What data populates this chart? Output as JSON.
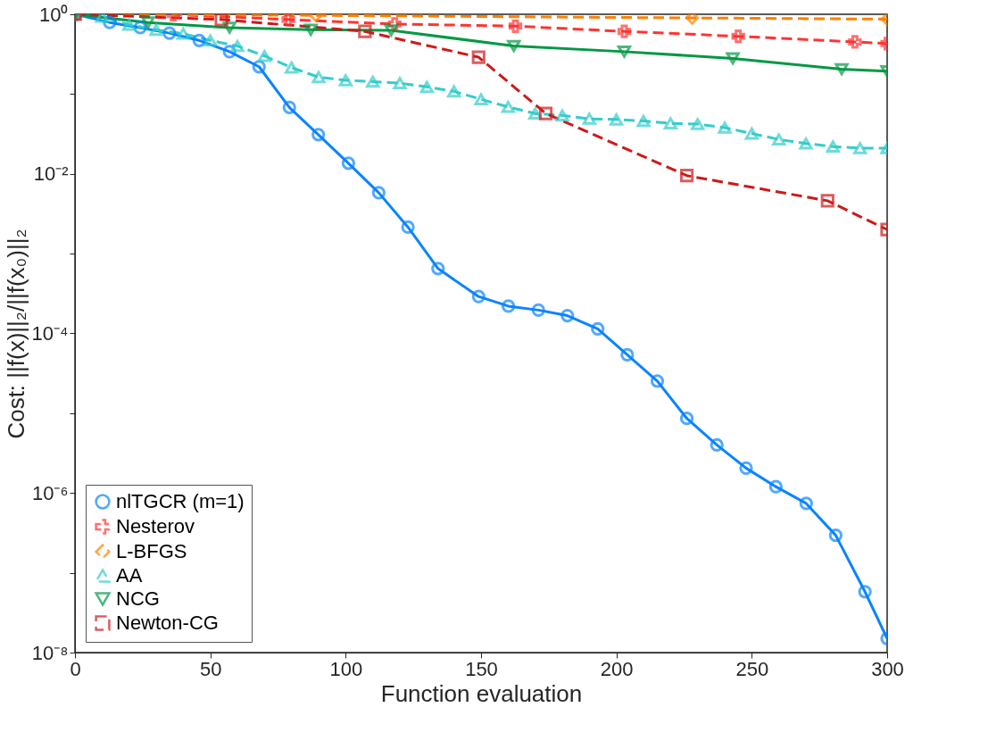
{
  "chart_data": {
    "type": "line",
    "xlabel": "Function evaluation",
    "ylabel": "Cost: ||f(x)||₂/||f(x₀)||₂",
    "log": "y",
    "grid": false,
    "legend": "bottom left",
    "xlim": [
      0,
      300
    ],
    "xticks": [
      0,
      50,
      100,
      150,
      200,
      250,
      300
    ],
    "ylim": [
      1e-08,
      1
    ],
    "yticks": [
      {
        "value": 1,
        "label": "10⁰"
      },
      {
        "value": 0.1,
        "label": null
      },
      {
        "value": 0.01,
        "label": "10⁻²"
      },
      {
        "value": 0.001,
        "label": null
      },
      {
        "value": 0.0001,
        "label": "10⁻⁴"
      },
      {
        "value": 1e-05,
        "label": null
      },
      {
        "value": 1e-06,
        "label": "10⁻⁶"
      },
      {
        "value": 1e-07,
        "label": null
      },
      {
        "value": 1e-08,
        "label": "10⁻⁸"
      }
    ],
    "series": [
      {
        "name": "nlTGCR (m=1)",
        "color": "#0a84ff",
        "marker": "circle",
        "line_style": "solid",
        "x": [
          0,
          12.8,
          24.1,
          34.9,
          45.9,
          57.1,
          68.0,
          79.2,
          89.9,
          101.0,
          112.2,
          123.0,
          134.1,
          149.1,
          160.1,
          171.2,
          181.9,
          193.1,
          204.0,
          215.1,
          226.0,
          237.1,
          247.9,
          258.9,
          270.1,
          281.0,
          291.8,
          300
        ],
        "values": [
          1,
          0.79,
          0.68,
          0.58,
          0.47,
          0.34,
          0.22,
          0.068,
          0.031,
          0.0136,
          0.0058,
          0.00215,
          0.00065,
          0.00029,
          0.00022,
          0.000196,
          0.000167,
          0.000114,
          5.4e-05,
          2.53e-05,
          8.6e-06,
          4e-06,
          2.05e-06,
          1.2e-06,
          7.4e-07,
          2.95e-07,
          5.8e-08,
          1.5e-08
        ]
      },
      {
        "name": "Nesterov",
        "color": "#ff3333",
        "marker": "cross",
        "line_style": "dashed",
        "x": [
          0,
          36.3,
          78.8,
          118.1,
          162.7,
          202.9,
          245.0,
          288.1,
          300
        ],
        "values": [
          1,
          0.99,
          0.86,
          0.755,
          0.71,
          0.61,
          0.53,
          0.45,
          0.43
        ]
      },
      {
        "name": "L-BFGS",
        "color": "#ff8000",
        "marker": "diamond",
        "line_style": "dashed",
        "x": [
          0,
          89.0,
          228.0,
          300
        ],
        "values": [
          1,
          0.97,
          0.9,
          0.87
        ]
      },
      {
        "name": "AA",
        "color": "#33cccc",
        "marker": "triangle",
        "line_style": "dashed",
        "x": [
          0,
          10,
          20,
          30,
          40,
          50,
          60,
          70,
          80,
          90,
          100,
          110,
          120,
          130,
          140,
          150,
          160,
          170,
          180,
          190,
          200,
          210,
          220,
          230,
          240,
          250,
          260,
          270,
          280,
          290,
          300
        ],
        "values": [
          1,
          0.93,
          0.74,
          0.64,
          0.57,
          0.47,
          0.4,
          0.3,
          0.215,
          0.163,
          0.149,
          0.143,
          0.137,
          0.123,
          0.108,
          0.086,
          0.069,
          0.057,
          0.054,
          0.049,
          0.048,
          0.046,
          0.043,
          0.042,
          0.038,
          0.032,
          0.027,
          0.024,
          0.022,
          0.021,
          0.021
        ]
      },
      {
        "name": "NCG",
        "color": "#009944",
        "marker": "triangle-down",
        "line_style": "solid",
        "x": [
          0,
          27.0,
          57.1,
          87.1,
          116.8,
          162.1,
          202.9,
          243.0,
          283.2,
          300
        ],
        "values": [
          1,
          0.79,
          0.68,
          0.64,
          0.63,
          0.4,
          0.34,
          0.28,
          0.205,
          0.193
        ]
      },
      {
        "name": "Newton-CG",
        "color": "#cc1a1a",
        "marker": "square",
        "line_style": "dashed",
        "x": [
          0,
          54.1,
          107.1,
          149.1,
          173.9,
          226.0,
          278.0,
          300
        ],
        "values": [
          1,
          0.86,
          0.61,
          0.29,
          0.057,
          0.0095,
          0.0046,
          0.002
        ]
      }
    ]
  }
}
